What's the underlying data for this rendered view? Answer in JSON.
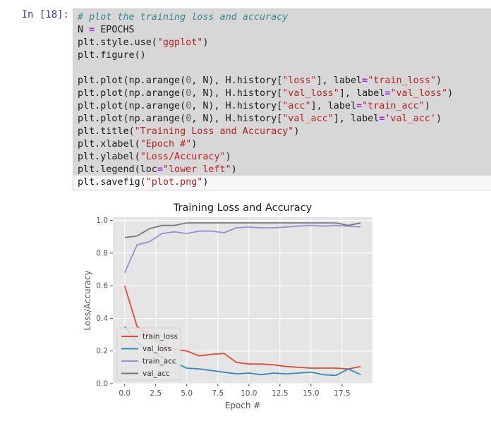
{
  "cell": {
    "prompt": "In [18]:",
    "code_lines": [
      [
        {
          "t": "# plot the training loss and accuracy",
          "c": "comment"
        }
      ],
      [
        {
          "t": "N ",
          "c": ""
        },
        {
          "t": "=",
          "c": "op"
        },
        {
          "t": " EPOCHS",
          "c": ""
        }
      ],
      [
        {
          "t": "plt.style.use(",
          "c": ""
        },
        {
          "t": "\"ggplot\"",
          "c": "string"
        },
        {
          "t": ")",
          "c": ""
        }
      ],
      [
        {
          "t": "plt.figure()",
          "c": ""
        }
      ],
      [
        {
          "t": "",
          "c": ""
        }
      ],
      [
        {
          "t": "plt.plot(np.arange(",
          "c": ""
        },
        {
          "t": "0",
          "c": "num"
        },
        {
          "t": ", N), H.history[",
          "c": ""
        },
        {
          "t": "\"loss\"",
          "c": "string"
        },
        {
          "t": "], label",
          "c": ""
        },
        {
          "t": "=",
          "c": "op"
        },
        {
          "t": "\"train_loss\"",
          "c": "string"
        },
        {
          "t": ")",
          "c": ""
        }
      ],
      [
        {
          "t": "plt.plot(np.arange(",
          "c": ""
        },
        {
          "t": "0",
          "c": "num"
        },
        {
          "t": ", N), H.history[",
          "c": ""
        },
        {
          "t": "\"val_loss\"",
          "c": "string"
        },
        {
          "t": "], label",
          "c": ""
        },
        {
          "t": "=",
          "c": "op"
        },
        {
          "t": "\"val_loss\"",
          "c": "string"
        },
        {
          "t": ")",
          "c": ""
        }
      ],
      [
        {
          "t": "plt.plot(np.arange(",
          "c": ""
        },
        {
          "t": "0",
          "c": "num"
        },
        {
          "t": ", N), H.history[",
          "c": ""
        },
        {
          "t": "\"acc\"",
          "c": "string"
        },
        {
          "t": "], label",
          "c": ""
        },
        {
          "t": "=",
          "c": "op"
        },
        {
          "t": "\"train_acc\"",
          "c": "string"
        },
        {
          "t": ")",
          "c": ""
        }
      ],
      [
        {
          "t": "plt.plot(np.arange(",
          "c": ""
        },
        {
          "t": "0",
          "c": "num"
        },
        {
          "t": ", N), H.history[",
          "c": ""
        },
        {
          "t": "\"val_acc\"",
          "c": "string"
        },
        {
          "t": "], label",
          "c": ""
        },
        {
          "t": "=",
          "c": "op"
        },
        {
          "t": "'val_acc'",
          "c": "string"
        },
        {
          "t": ")",
          "c": ""
        }
      ],
      [
        {
          "t": "plt.title(",
          "c": ""
        },
        {
          "t": "\"Training Loss and Accuracy\"",
          "c": "string"
        },
        {
          "t": ")",
          "c": ""
        }
      ],
      [
        {
          "t": "plt.xlabel(",
          "c": ""
        },
        {
          "t": "\"Epoch #\"",
          "c": "string"
        },
        {
          "t": ")",
          "c": ""
        }
      ],
      [
        {
          "t": "plt.ylabel(",
          "c": ""
        },
        {
          "t": "\"Loss/Accuracy\"",
          "c": "string"
        },
        {
          "t": ")",
          "c": ""
        }
      ],
      [
        {
          "t": "plt.legend(loc",
          "c": ""
        },
        {
          "t": "=",
          "c": "op"
        },
        {
          "t": "\"lower left\"",
          "c": "string"
        },
        {
          "t": ")",
          "c": ""
        }
      ],
      [
        {
          "t": "plt.savefig(",
          "c": ""
        },
        {
          "t": "\"plot.png\"",
          "c": "string"
        },
        {
          "t": ")",
          "c": ""
        }
      ]
    ]
  },
  "chart_data": {
    "type": "line",
    "title": "Training Loss and Accuracy",
    "xlabel": "Epoch #",
    "ylabel": "Loss/Accuracy",
    "xlim": [
      -0.95,
      19.95
    ],
    "ylim": [
      0.0,
      1.02
    ],
    "xticks": [
      0.0,
      2.5,
      5.0,
      7.5,
      10.0,
      12.5,
      15.0,
      17.5
    ],
    "xtick_labels": [
      "0.0",
      "2.5",
      "5.0",
      "7.5",
      "10.0",
      "12.5",
      "15.0",
      "17.5"
    ],
    "yticks": [
      0.0,
      0.2,
      0.4,
      0.6,
      0.8,
      1.0
    ],
    "ytick_labels": [
      "0.0",
      "0.2",
      "0.4",
      "0.6",
      "0.8",
      "1.0"
    ],
    "grid": true,
    "legend": "lower left",
    "style": "ggplot",
    "x": [
      0,
      1,
      2,
      3,
      4,
      5,
      6,
      7,
      8,
      9,
      10,
      11,
      12,
      13,
      14,
      15,
      16,
      17,
      18,
      19
    ],
    "series": [
      {
        "name": "train_loss",
        "color": "#e24a33",
        "values": [
          0.6,
          0.35,
          0.3,
          0.24,
          0.21,
          0.2,
          0.17,
          0.18,
          0.185,
          0.13,
          0.12,
          0.12,
          0.115,
          0.105,
          0.1,
          0.095,
          0.095,
          0.095,
          0.09,
          0.105
        ]
      },
      {
        "name": "val_loss",
        "color": "#348abd",
        "values": [
          0.35,
          0.25,
          0.21,
          0.16,
          0.13,
          0.095,
          0.09,
          0.08,
          0.07,
          0.06,
          0.065,
          0.055,
          0.065,
          0.06,
          0.065,
          0.07,
          0.055,
          0.05,
          0.09,
          0.055
        ]
      },
      {
        "name": "train_acc",
        "color": "#988ed5",
        "values": [
          0.68,
          0.85,
          0.87,
          0.92,
          0.93,
          0.92,
          0.935,
          0.935,
          0.925,
          0.955,
          0.96,
          0.955,
          0.955,
          0.96,
          0.965,
          0.97,
          0.965,
          0.97,
          0.965,
          0.96
        ]
      },
      {
        "name": "val_acc",
        "color": "#777777",
        "values": [
          0.895,
          0.905,
          0.95,
          0.97,
          0.97,
          0.985,
          0.985,
          0.985,
          0.985,
          0.985,
          0.985,
          0.985,
          0.985,
          0.985,
          0.985,
          0.985,
          0.985,
          0.985,
          0.97,
          0.985
        ]
      }
    ]
  }
}
